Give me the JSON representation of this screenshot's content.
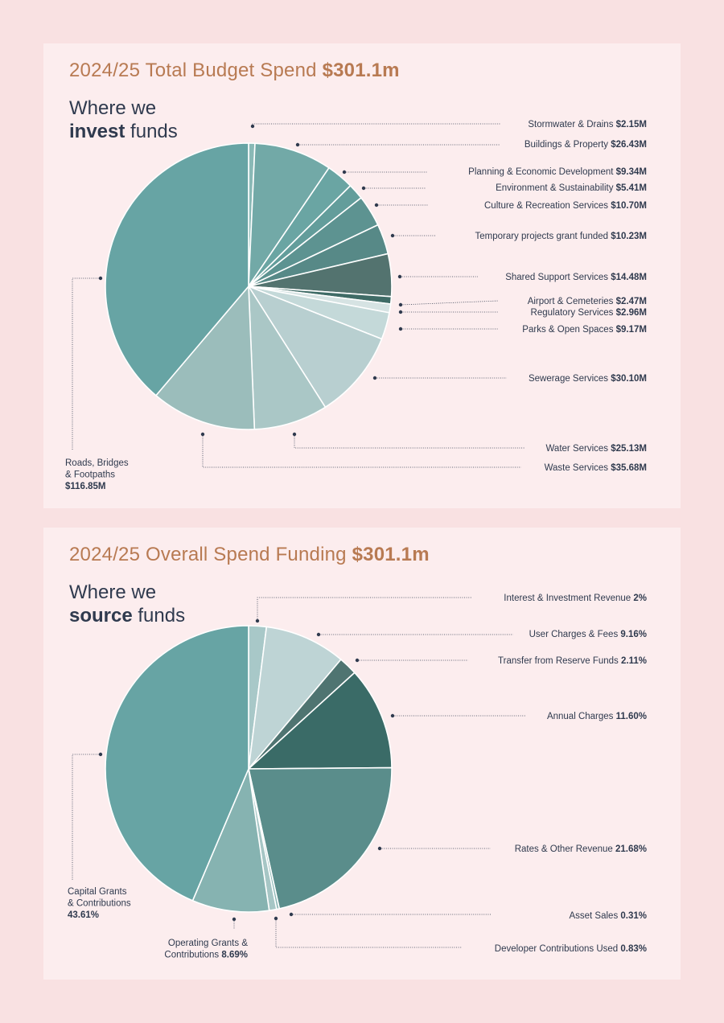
{
  "colors": {
    "page_bg": "#f9e1e2",
    "panel_bg": "#fcedee",
    "title": "#b87a52",
    "text": "#2f3a4e"
  },
  "invest": {
    "title_prefix": "2024/25 Total Budget Spend",
    "title_amount": "$301.1m",
    "subtitle_line1": "Where we",
    "subtitle_bold": "invest",
    "subtitle_rest": "funds"
  },
  "source": {
    "title_prefix": "2024/25 Overall Spend Funding",
    "title_amount": "$301.1m",
    "subtitle_line1": "Where we",
    "subtitle_bold": "source",
    "subtitle_rest": "funds"
  },
  "chart_data": [
    {
      "type": "pie",
      "title": "2024/25 Total Budget Spend $301.1m",
      "slices": [
        {
          "label": "Stormwater & Drains",
          "value_text": "$2.15M",
          "value": 2.15,
          "color": "#8ab9b6"
        },
        {
          "label": "Buildings & Property",
          "value_text": "$26.43M",
          "value": 26.43,
          "color": "#72a9a7"
        },
        {
          "label": "Planning & Economic Development",
          "value_text": "$9.34M",
          "value": 9.34,
          "color": "#6aa5a3"
        },
        {
          "label": "Environment & Sustainability",
          "value_text": "$5.41M",
          "value": 5.41,
          "color": "#639d9b"
        },
        {
          "label": "Culture & Recreation Services",
          "value_text": "$10.70M",
          "value": 10.7,
          "color": "#5d9391"
        },
        {
          "label": "Temporary projects grant funded",
          "value_text": "$10.23M",
          "value": 10.23,
          "color": "#578987"
        },
        {
          "label": "Shared Support Services",
          "value_text": "$14.48M",
          "value": 14.48,
          "color": "#53736f"
        },
        {
          "label": "Airport & Cemeteries",
          "value_text": "$2.47M",
          "value": 2.47,
          "color": "#3f6b66"
        },
        {
          "label": "Regulatory Services",
          "value_text": "$2.96M",
          "value": 2.96,
          "color": "#d6e3e3"
        },
        {
          "label": "Parks & Open Spaces",
          "value_text": "$9.17M",
          "value": 9.17,
          "color": "#c4d9d9"
        },
        {
          "label": "Sewerage Services",
          "value_text": "$30.10M",
          "value": 30.1,
          "color": "#b8cfd0"
        },
        {
          "label": "Water Services",
          "value_text": "$25.13M",
          "value": 25.13,
          "color": "#aac7c6"
        },
        {
          "label": "Waste Services",
          "value_text": "$35.68M",
          "value": 35.68,
          "color": "#9bbdbb"
        },
        {
          "label": "Roads, Bridges & Footpaths",
          "value_text": "$116.85M",
          "value": 116.85,
          "color": "#67a4a4"
        }
      ]
    },
    {
      "type": "pie",
      "title": "2024/25 Overall Spend Funding $301.1m",
      "slices": [
        {
          "label": "Interest & Investment Revenue",
          "value_text": "2%",
          "value": 2.0,
          "color": "#a8c8c8"
        },
        {
          "label": "User Charges & Fees",
          "value_text": "9.16%",
          "value": 9.16,
          "color": "#bed4d5"
        },
        {
          "label": "Transfer from Reserve Funds",
          "value_text": "2.11%",
          "value": 2.11,
          "color": "#4f7471"
        },
        {
          "label": "Annual Charges",
          "value_text": "11.60%",
          "value": 11.6,
          "color": "#3a6b67"
        },
        {
          "label": "Rates & Other Revenue",
          "value_text": "21.68%",
          "value": 21.68,
          "color": "#5a8d8b"
        },
        {
          "label": "Asset Sales",
          "value_text": "0.31%",
          "value": 0.31,
          "color": "#8fb9b7"
        },
        {
          "label": "Developer Contributions Used",
          "value_text": "0.83%",
          "value": 0.83,
          "color": "#a6c6c5"
        },
        {
          "label": "Operating Grants & Contributions",
          "value_text": "8.69%",
          "value": 8.69,
          "color": "#86b3b1"
        },
        {
          "label": "Capital Grants & Contributions",
          "value_text": "43.61%",
          "value": 43.61,
          "color": "#67a4a4"
        }
      ]
    }
  ]
}
